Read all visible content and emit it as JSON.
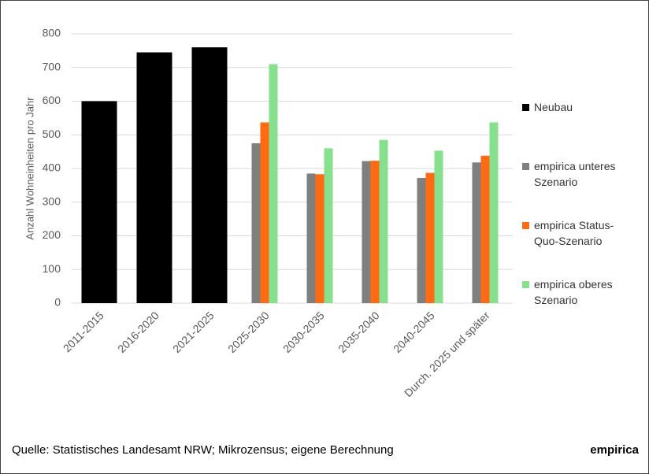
{
  "chart_data": {
    "type": "bar",
    "y_label": "Anzahl Wohneinheiten pro Jahr",
    "categories": [
      "2011-2015",
      "2016-2020",
      "2021-2025",
      "2025-2030",
      "2030-2035",
      "2035-2040",
      "2040-2045",
      "Durch. 2025 und später"
    ],
    "series": [
      {
        "name": "Neubau",
        "color": "#000000",
        "values": [
          600,
          745,
          760,
          null,
          null,
          null,
          null,
          null
        ]
      },
      {
        "name": "empirica unteres Szenario",
        "color": "#7f7f7f",
        "values": [
          null,
          null,
          null,
          475,
          385,
          422,
          372,
          418
        ]
      },
      {
        "name": "empirica Status-Quo-Szenario",
        "color": "#ff6a13",
        "values": [
          null,
          null,
          null,
          537,
          383,
          423,
          387,
          438
        ]
      },
      {
        "name": "empirica oberes Szenario",
        "color": "#86e08e",
        "values": [
          null,
          null,
          null,
          710,
          460,
          485,
          453,
          537
        ]
      }
    ],
    "ylim": [
      0,
      800
    ],
    "yticks": [
      0,
      100,
      200,
      300,
      400,
      500,
      600,
      700,
      800
    ],
    "grid": true,
    "legend_position": "right"
  },
  "footer": {
    "source": "Quelle: Statistisches Landesamt NRW; Mikrozensus; eigene Berechnung",
    "logo": "empirica"
  }
}
